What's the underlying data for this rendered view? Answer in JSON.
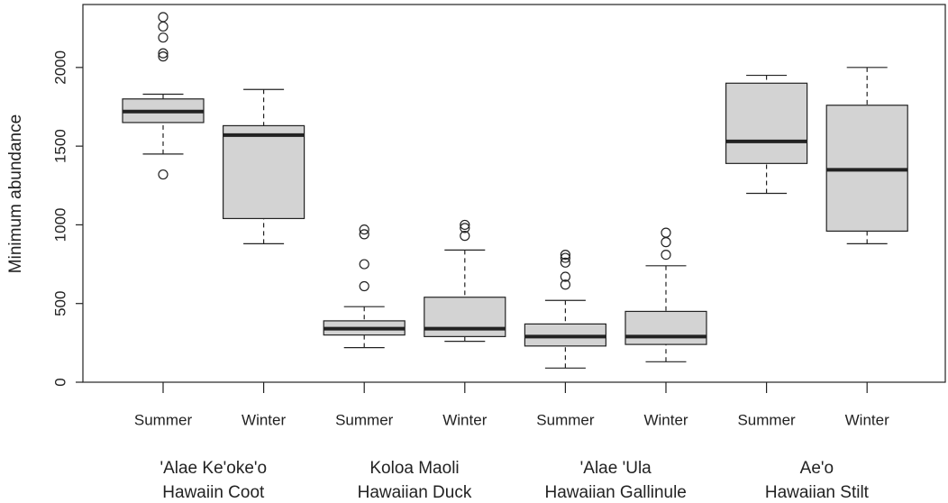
{
  "chart_data": {
    "type": "box",
    "y_label": "Minimum abundance",
    "categories": [
      "Summer",
      "Winter",
      "Summer",
      "Winter",
      "Summer",
      "Winter",
      "Summer",
      "Winter"
    ],
    "group_labels": [
      [
        "'Alae Ke'oke'o",
        "Hawaiin Coot"
      ],
      [
        "Koloa Maoli",
        "Hawaiian Duck"
      ],
      [
        "'Alae 'Ula",
        "Hawaiian Gallinule"
      ],
      [
        "Ae'o",
        "Hawaiian Stilt"
      ]
    ],
    "boxes": [
      {
        "whislo": 1450,
        "q1": 1650,
        "med": 1720,
        "q3": 1800,
        "whishi": 1830,
        "fliers": [
          2320,
          2260,
          2190,
          2090,
          2070,
          1320
        ]
      },
      {
        "whislo": 880,
        "q1": 1040,
        "med": 1570,
        "q3": 1630,
        "whishi": 1860,
        "fliers": []
      },
      {
        "whislo": 220,
        "q1": 300,
        "med": 340,
        "q3": 390,
        "whishi": 480,
        "fliers": [
          970,
          940,
          750,
          610
        ]
      },
      {
        "whislo": 260,
        "q1": 290,
        "med": 340,
        "q3": 540,
        "whishi": 840,
        "fliers": [
          1000,
          980,
          930
        ]
      },
      {
        "whislo": 90,
        "q1": 230,
        "med": 290,
        "q3": 370,
        "whishi": 520,
        "fliers": [
          810,
          790,
          760,
          670,
          620
        ]
      },
      {
        "whislo": 130,
        "q1": 240,
        "med": 290,
        "q3": 450,
        "whishi": 740,
        "fliers": [
          950,
          890,
          810
        ]
      },
      {
        "whislo": 1200,
        "q1": 1390,
        "med": 1530,
        "q3": 1900,
        "whishi": 1950,
        "fliers": []
      },
      {
        "whislo": 880,
        "q1": 960,
        "med": 1350,
        "q3": 1760,
        "whishi": 2000,
        "fliers": []
      }
    ],
    "color": "#d3d3d3",
    "ylim": [
      0,
      2400
    ],
    "yticks": [
      0,
      500,
      1000,
      1500,
      2000
    ]
  }
}
